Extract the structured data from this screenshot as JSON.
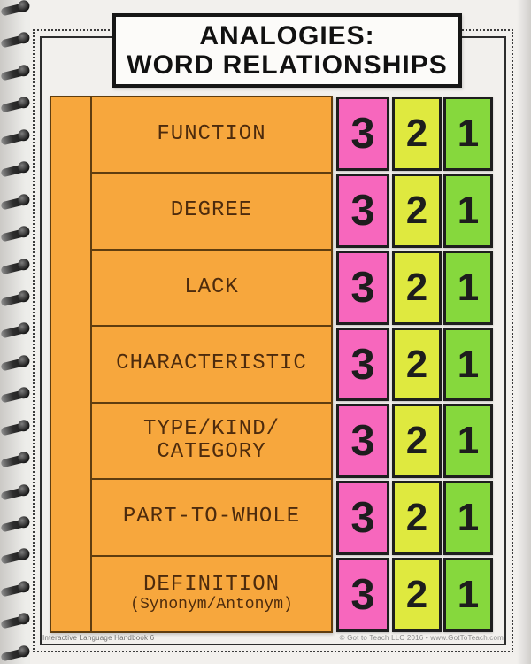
{
  "page": {
    "title": {
      "line1": "ANALOGIES:",
      "line2": "WORD RELATIONSHIPS"
    },
    "footer": {
      "left": "Interactive Language Handbook 6",
      "right": "© Got to Teach LLC 2016 • www.GotToTeach.com"
    }
  },
  "worksheet": {
    "rows": [
      {
        "label": "FUNCTION",
        "scores": [
          "3",
          "2",
          "1"
        ]
      },
      {
        "label": "DEGREE",
        "scores": [
          "3",
          "2",
          "1"
        ]
      },
      {
        "label": "LACK",
        "scores": [
          "3",
          "2",
          "1"
        ]
      },
      {
        "label": "CHARACTERISTIC",
        "scores": [
          "3",
          "2",
          "1"
        ]
      },
      {
        "label": "TYPE/KIND/",
        "label2": "CATEGORY",
        "scores": [
          "3",
          "2",
          "1"
        ]
      },
      {
        "label": "PART-TO-WHOLE",
        "scores": [
          "3",
          "2",
          "1"
        ]
      },
      {
        "label": "DEFINITION",
        "sublabel": "(Synonym/Antonym)",
        "scores": [
          "3",
          "2",
          "1"
        ]
      }
    ],
    "colors": {
      "card": "#f7a73d",
      "score3": "#f767bd",
      "score2": "#dfe93f",
      "score1": "#86d83d"
    }
  }
}
